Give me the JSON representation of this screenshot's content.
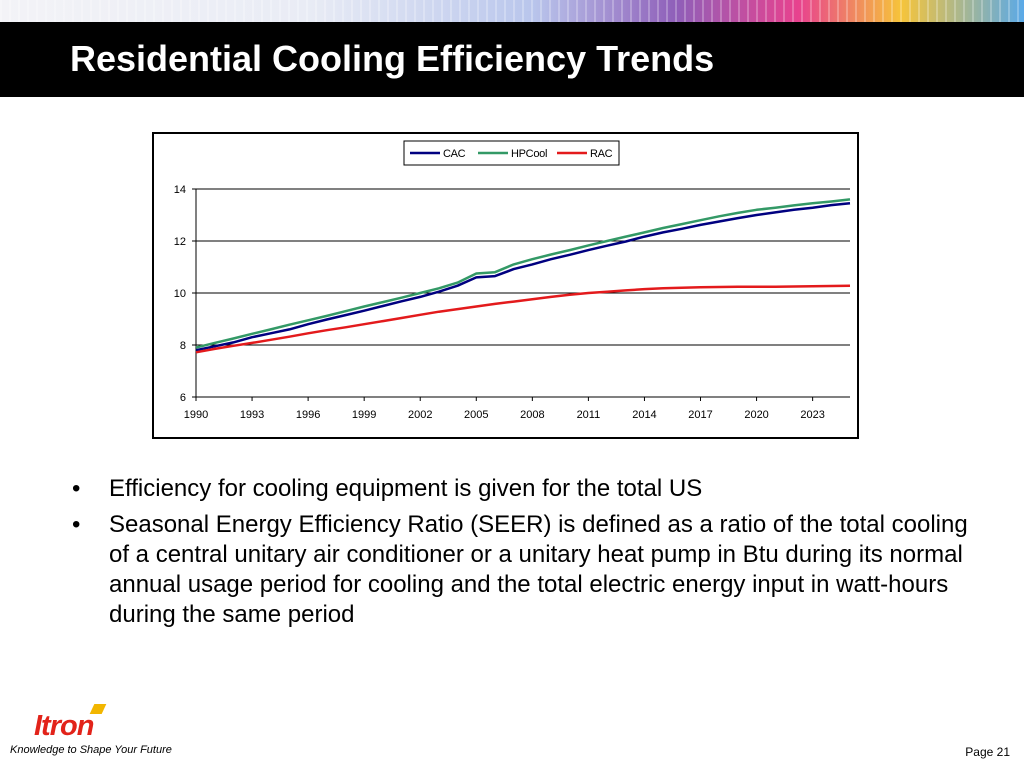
{
  "slide": {
    "title": "Residential Cooling Efficiency Trends",
    "bullets": [
      "Efficiency for cooling equipment is given for the total US",
      "Seasonal Energy Efficiency Ratio (SEER) is defined as a ratio of the total cooling of a central unitary air conditioner or a unitary heat pump in Btu during its normal annual usage period for cooling and the total electric energy input in watt-hours during the same period"
    ],
    "bullet_symbol": "•"
  },
  "footer": {
    "logo_text": "Itron",
    "tagline": "Knowledge to Shape Your Future",
    "page_label": "Page 21"
  },
  "chart_data": {
    "type": "line",
    "title": "",
    "xlabel": "",
    "ylabel": "",
    "ylim": [
      6,
      14
    ],
    "yticks": [
      6,
      8,
      10,
      12,
      14
    ],
    "xlim": [
      1990,
      2025
    ],
    "xticks": [
      1990,
      1993,
      1996,
      1999,
      2002,
      2005,
      2008,
      2011,
      2014,
      2017,
      2020,
      2023
    ],
    "grid": true,
    "legend_position": "top-center",
    "x": [
      1990,
      1991,
      1992,
      1993,
      1994,
      1995,
      1996,
      1997,
      1998,
      1999,
      2000,
      2001,
      2002,
      2003,
      2004,
      2005,
      2006,
      2007,
      2008,
      2009,
      2010,
      2011,
      2012,
      2013,
      2014,
      2015,
      2016,
      2017,
      2018,
      2019,
      2020,
      2021,
      2022,
      2023,
      2024,
      2025
    ],
    "series": [
      {
        "name": "CAC",
        "color": "#000080",
        "values": [
          7.8,
          7.95,
          8.1,
          8.3,
          8.45,
          8.6,
          8.8,
          8.98,
          9.15,
          9.32,
          9.5,
          9.68,
          9.85,
          10.05,
          10.28,
          10.6,
          10.65,
          10.92,
          11.1,
          11.3,
          11.47,
          11.65,
          11.82,
          11.98,
          12.17,
          12.33,
          12.47,
          12.62,
          12.75,
          12.88,
          13.0,
          13.1,
          13.2,
          13.28,
          13.38,
          13.45
        ]
      },
      {
        "name": "HPCool",
        "color": "#339966",
        "values": [
          7.9,
          8.08,
          8.25,
          8.43,
          8.6,
          8.78,
          8.95,
          9.12,
          9.3,
          9.48,
          9.65,
          9.82,
          10.0,
          10.18,
          10.4,
          10.75,
          10.8,
          11.1,
          11.3,
          11.48,
          11.65,
          11.83,
          12.0,
          12.17,
          12.33,
          12.5,
          12.65,
          12.8,
          12.95,
          13.08,
          13.2,
          13.28,
          13.37,
          13.45,
          13.52,
          13.6
        ]
      },
      {
        "name": "RAC",
        "color": "#e31a1c",
        "values": [
          7.72,
          7.85,
          7.97,
          8.08,
          8.2,
          8.32,
          8.45,
          8.57,
          8.68,
          8.8,
          8.92,
          9.04,
          9.16,
          9.28,
          9.38,
          9.48,
          9.58,
          9.67,
          9.76,
          9.85,
          9.93,
          10.0,
          10.05,
          10.1,
          10.15,
          10.18,
          10.2,
          10.22,
          10.23,
          10.24,
          10.24,
          10.24,
          10.25,
          10.26,
          10.27,
          10.28
        ]
      }
    ]
  }
}
